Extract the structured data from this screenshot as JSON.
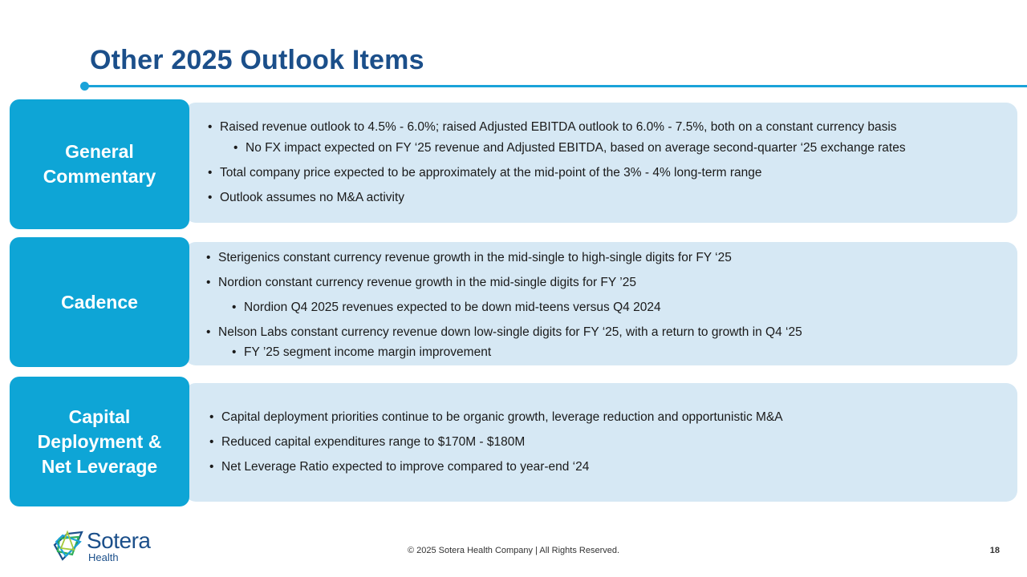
{
  "title": "Other 2025 Outlook Items",
  "sections": [
    {
      "label": "General\nCommentary",
      "bullets": [
        {
          "text": "Raised revenue outlook to 4.5% - 6.0%; raised Adjusted EBITDA outlook to 6.0% - 7.5%, both on a constant currency basis",
          "level": 1
        },
        {
          "text": "No FX impact expected on FY ‘25 revenue and Adjusted EBITDA, based on average second-quarter ‘25 exchange rates",
          "level": 2
        },
        {
          "text": "Total company price expected to be approximately at the mid-point of the 3% - 4% long-term range",
          "level": 1
        },
        {
          "text": "Outlook assumes no M&A activity",
          "level": 1
        }
      ]
    },
    {
      "label": "Cadence",
      "bullets": [
        {
          "text": "Sterigenics constant currency revenue growth in the mid-single to high-single digits for FY ‘25",
          "level": 1
        },
        {
          "text": "Nordion constant currency revenue growth in the mid-single digits for FY ’25",
          "level": 1
        },
        {
          "text": "Nordion Q4 2025 revenues expected to be down mid-teens versus Q4 2024",
          "level": 2
        },
        {
          "text": "Nelson Labs constant currency revenue down low-single digits for FY ‘25, with a return to growth in Q4 ‘25",
          "level": 1
        },
        {
          "text": "FY ’25 segment income margin improvement",
          "level": 2
        }
      ]
    },
    {
      "label": "Capital\nDeployment &\nNet Leverage",
      "bullets": [
        {
          "text": "Capital deployment priorities continue to be organic growth, leverage reduction and opportunistic M&A",
          "level": 1
        },
        {
          "text": "Reduced capital expenditures range to $170M - $180M",
          "level": 1
        },
        {
          "text": "Net Leverage Ratio expected to improve compared to year-end ‘24",
          "level": 1
        }
      ]
    }
  ],
  "footer": {
    "copyright": "© 2025 Sotera Health Company |  All Rights Reserved.",
    "page_number": "18",
    "logo_name": "Sotera",
    "logo_sub": "Health"
  },
  "colors": {
    "title": "#1b4f8a",
    "accent": "#1aa3d9",
    "label_bg": "#0ea5d6",
    "content_bg": "#d6e8f4"
  }
}
